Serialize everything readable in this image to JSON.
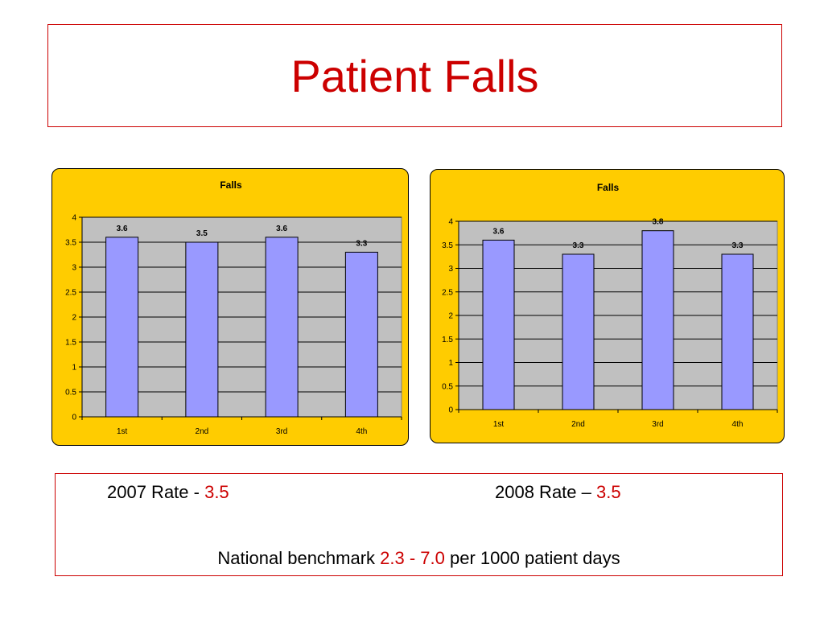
{
  "slide": {
    "title": "Patient Falls"
  },
  "colors": {
    "accent_red": "#cc0000",
    "panel_bg": "#ffcc00",
    "plot_bg": "#c0c0c0",
    "bar_fill": "#9999ff"
  },
  "chart_data": [
    {
      "type": "bar",
      "title": "Falls",
      "categories": [
        "1st",
        "2nd",
        "3rd",
        "4th"
      ],
      "values": [
        3.6,
        3.5,
        3.6,
        3.3
      ],
      "value_labels": [
        "3.6",
        "3.5",
        "3.6",
        "3.3"
      ],
      "ylim": [
        0,
        4
      ],
      "yticks": [
        "0",
        "0.5",
        "1",
        "1.5",
        "2",
        "2.5",
        "3",
        "3.5",
        "4"
      ],
      "grid": true,
      "xlabel": "",
      "ylabel": ""
    },
    {
      "type": "bar",
      "title": "Falls",
      "categories": [
        "1st",
        "2nd",
        "3rd",
        "4th"
      ],
      "values": [
        3.6,
        3.3,
        3.8,
        3.3
      ],
      "value_labels": [
        "3.6",
        "3.3",
        "3.8",
        "3.3"
      ],
      "ylim": [
        0,
        4
      ],
      "yticks": [
        "0",
        "0.5",
        "1",
        "1.5",
        "2",
        "2.5",
        "3",
        "3.5",
        "4"
      ],
      "grid": true,
      "xlabel": "",
      "ylabel": ""
    }
  ],
  "summary": {
    "rate_2007_label": "2007 Rate - ",
    "rate_2007_value": "3.5",
    "rate_2008_label": "2008 Rate – ",
    "rate_2008_value": "3.5",
    "benchmark_label": "National benchmark ",
    "benchmark_range": "2.3 - 7.0",
    "benchmark_unit": " per 1000 patient days"
  }
}
